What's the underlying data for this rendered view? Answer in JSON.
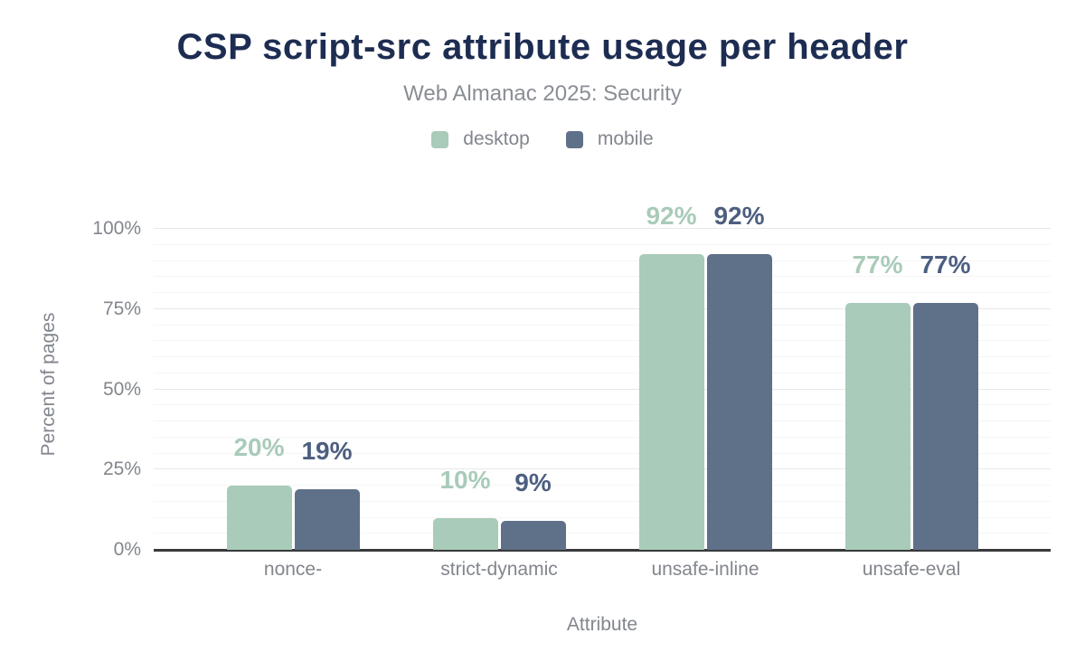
{
  "chart_data": {
    "type": "bar",
    "title": "CSP script-src attribute usage per header",
    "subtitle": "Web Almanac 2025: Security",
    "categories": [
      "nonce-",
      "strict-dynamic",
      "unsafe-inline",
      "unsafe-eval"
    ],
    "series": [
      {
        "name": "desktop",
        "color": "#a9cbb9",
        "label_color": "#a9cbb9",
        "values": [
          20,
          10,
          92,
          77
        ]
      },
      {
        "name": "mobile",
        "color": "#5f7089",
        "label_color": "#4d5f80",
        "values": [
          19,
          9,
          92,
          77
        ]
      }
    ],
    "xlabel": "Attribute",
    "ylabel": "Percent of pages",
    "ylim": [
      0,
      100
    ],
    "yticks": [
      "0%",
      "25%",
      "50%",
      "75%",
      "100%"
    ],
    "ytick_values": [
      0,
      25,
      50,
      75,
      100
    ],
    "grid": {
      "enabled": true,
      "major_step": 25,
      "minor_step": 5
    },
    "legend_position": "top",
    "value_suffix": "%",
    "colors": {
      "title": "#1d2d52",
      "subtitle_text": "#8a8e94",
      "axis_text": "#82868d",
      "axis_line": "#37393b",
      "gridline_major": "#e8e8ea",
      "gridline_minor": "#f5f5f6",
      "background": "#ffffff"
    }
  }
}
